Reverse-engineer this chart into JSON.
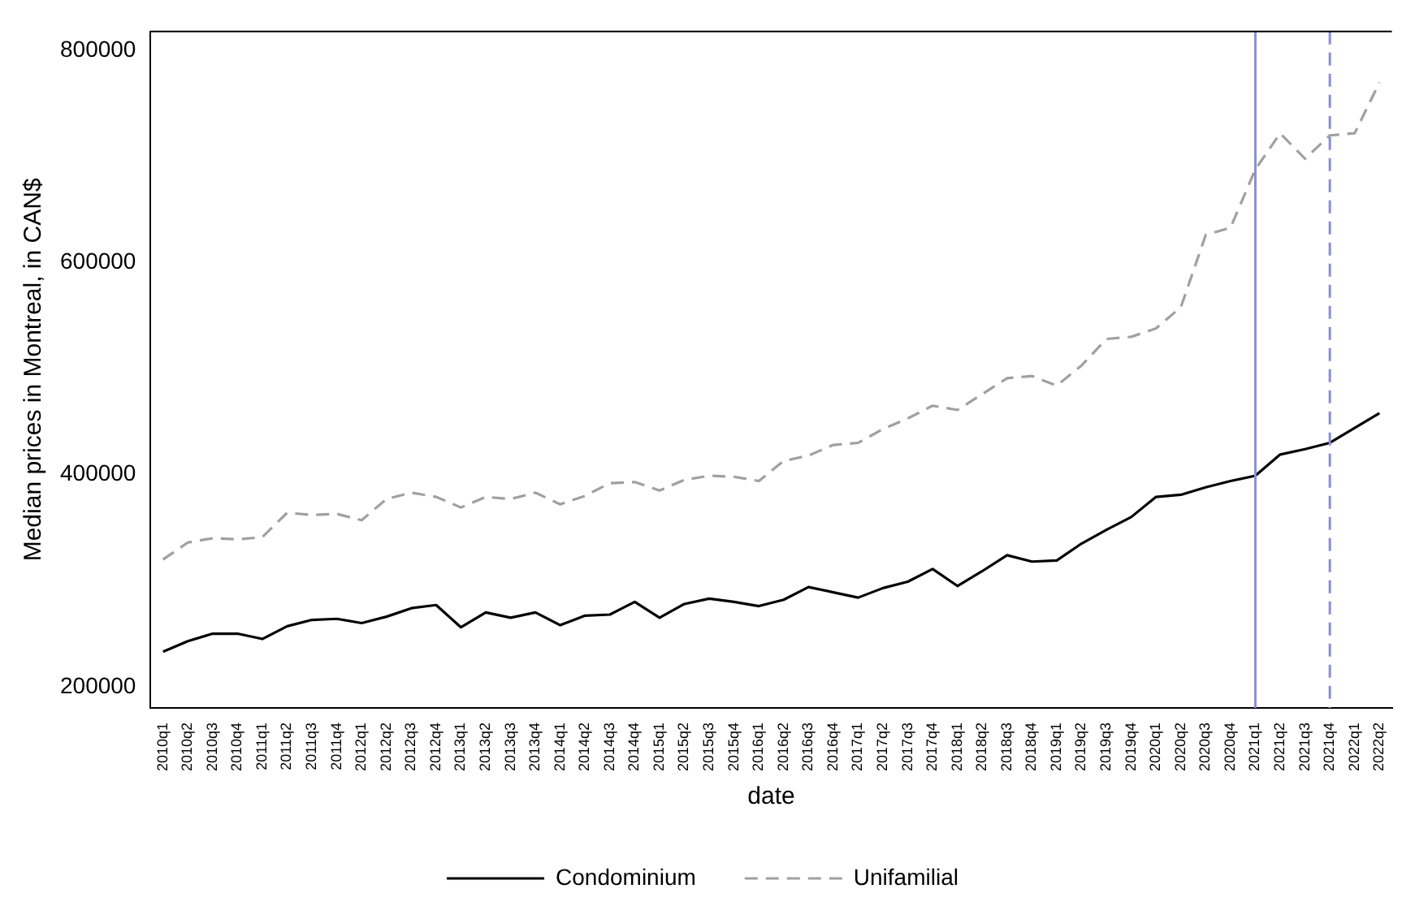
{
  "chart_data": {
    "type": "line",
    "xlabel": "date",
    "ylabel": "Median prices in Montreal, in CAN$",
    "categories": [
      "2010q1",
      "2010q2",
      "2010q3",
      "2010q4",
      "2011q1",
      "2011q2",
      "2011q3",
      "2011q4",
      "2012q1",
      "2012q2",
      "2012q3",
      "2012q4",
      "2013q1",
      "2013q2",
      "2013q3",
      "2013q4",
      "2014q1",
      "2014q2",
      "2014q3",
      "2014q4",
      "2015q1",
      "2015q2",
      "2015q3",
      "2015q4",
      "2016q1",
      "2016q2",
      "2016q3",
      "2016q4",
      "2017q1",
      "2017q2",
      "2017q3",
      "2017q4",
      "2018q1",
      "2018q2",
      "2018q3",
      "2018q4",
      "2019q1",
      "2019q2",
      "2019q3",
      "2019q4",
      "2020q1",
      "2020q2",
      "2020q3",
      "2020q4",
      "2021q1",
      "2021q2",
      "2021q3",
      "2021q4",
      "2022q1",
      "2022q2"
    ],
    "series": [
      {
        "name": "Condominium",
        "color": "#000000",
        "line_style": "solid",
        "values": [
          233000,
          243000,
          250000,
          250000,
          245000,
          257000,
          263000,
          264000,
          260000,
          266000,
          274000,
          277000,
          256000,
          270000,
          265000,
          270000,
          258000,
          267000,
          268000,
          280000,
          265000,
          278000,
          283000,
          280000,
          276000,
          282000,
          294000,
          289000,
          284000,
          293000,
          299000,
          311000,
          295000,
          309000,
          324000,
          318000,
          319000,
          335000,
          348000,
          360000,
          379000,
          381000,
          388000,
          394000,
          399000,
          419000,
          424000,
          430000,
          444000,
          458000
        ]
      },
      {
        "name": "Unifamilial",
        "color": "#a0a0a0",
        "line_style": "dashed",
        "values": [
          320000,
          336000,
          340000,
          339000,
          341000,
          364000,
          362000,
          363000,
          357000,
          377000,
          383000,
          379000,
          369000,
          379000,
          377000,
          383000,
          372000,
          380000,
          392000,
          393000,
          385000,
          395000,
          399000,
          398000,
          394000,
          413000,
          418000,
          428000,
          430000,
          443000,
          453000,
          465000,
          461000,
          476000,
          491000,
          493000,
          484000,
          503000,
          528000,
          530000,
          538000,
          558000,
          626000,
          633000,
          688000,
          722000,
          698000,
          720000,
          722000,
          770000
        ]
      }
    ],
    "ylim": [
      180000,
      818000
    ],
    "yticks": [
      200000,
      400000,
      600000,
      800000
    ],
    "ref_lines": [
      {
        "axis": "x",
        "value": "2021q1",
        "color": "#8c8cdc",
        "line_style": "solid"
      },
      {
        "axis": "x",
        "value": "2021q4",
        "color": "#8c8cdc",
        "line_style": "dashed"
      }
    ],
    "grid": false,
    "legend": "bottom",
    "marker": "none"
  }
}
